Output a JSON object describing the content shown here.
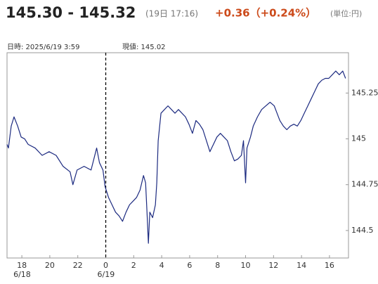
{
  "header": {
    "price": "145.30 - 145.32",
    "time": "(19日 17:16)",
    "change": "+0.36（+0.24%）",
    "unit": "(単位:円)"
  },
  "info": {
    "datetime": "日時: 2025/6/19  3:59",
    "current": "現値: 145.02"
  },
  "chart_data": {
    "type": "line",
    "x": [
      16.94,
      17.04,
      17.24,
      17.44,
      17.7,
      17.95,
      18.2,
      18.45,
      18.95,
      19.45,
      19.95,
      20.45,
      20.95,
      21.45,
      21.65,
      21.95,
      22.45,
      22.95,
      23.35,
      23.55,
      23.8,
      23.95,
      24.2,
      24.45,
      24.7,
      24.95,
      25.2,
      25.45,
      25.7,
      25.95,
      26.2,
      26.45,
      26.7,
      26.85,
      26.95,
      27.05,
      27.15,
      27.35,
      27.55,
      27.65,
      27.75,
      27.95,
      28.2,
      28.45,
      28.7,
      28.95,
      29.2,
      29.45,
      29.7,
      29.95,
      30.2,
      30.45,
      30.7,
      30.95,
      31.2,
      31.45,
      31.7,
      31.95,
      32.2,
      32.45,
      32.7,
      32.95,
      33.2,
      33.45,
      33.7,
      33.85,
      34.0,
      34.1,
      34.35,
      34.55,
      34.85,
      35.15,
      35.45,
      35.75,
      36.05,
      36.25,
      36.45,
      36.7,
      36.95,
      37.2,
      37.45,
      37.7,
      37.95,
      38.2,
      38.45,
      38.7,
      38.95,
      39.2,
      39.45,
      39.7,
      39.95,
      40.2,
      40.45,
      40.7,
      40.95,
      41.15
    ],
    "series": [
      {
        "color": "#1c2a80",
        "values": [
          144.97,
          144.95,
          145.07,
          145.12,
          145.07,
          145.01,
          145.0,
          144.97,
          144.95,
          144.91,
          144.93,
          144.91,
          144.85,
          144.82,
          144.75,
          144.83,
          144.85,
          144.83,
          144.95,
          144.87,
          144.83,
          144.74,
          144.68,
          144.64,
          144.6,
          144.58,
          144.55,
          144.6,
          144.64,
          144.66,
          144.68,
          144.72,
          144.8,
          144.76,
          144.6,
          144.43,
          144.6,
          144.57,
          144.64,
          144.76,
          144.99,
          145.14,
          145.16,
          145.18,
          145.16,
          145.14,
          145.16,
          145.14,
          145.12,
          145.08,
          145.03,
          145.1,
          145.08,
          145.05,
          144.99,
          144.93,
          144.97,
          145.01,
          145.03,
          145.01,
          144.99,
          144.93,
          144.88,
          144.89,
          144.91,
          144.99,
          144.76,
          144.95,
          145.01,
          145.07,
          145.12,
          145.16,
          145.18,
          145.2,
          145.18,
          145.14,
          145.1,
          145.07,
          145.05,
          145.07,
          145.08,
          145.07,
          145.1,
          145.14,
          145.18,
          145.22,
          145.26,
          145.3,
          145.32,
          145.33,
          145.33,
          145.35,
          145.37,
          145.35,
          145.37,
          145.33
        ]
      }
    ],
    "xlim": [
      16.94,
      41.36
    ],
    "ylim": [
      144.35,
      145.47
    ],
    "xticks": [
      18,
      20,
      22,
      {
        "value": 24,
        "label": "0"
      },
      {
        "value": 26,
        "label": "2"
      },
      {
        "value": 28,
        "label": "4"
      },
      {
        "value": 30,
        "label": "6"
      },
      {
        "value": 32,
        "label": "8"
      },
      {
        "value": 34,
        "label": "10"
      },
      {
        "value": 36,
        "label": "12"
      },
      {
        "value": 38,
        "label": "14"
      },
      {
        "value": 40,
        "label": "16"
      }
    ],
    "yticks": [
      144.5,
      144.75,
      145,
      145.25
    ],
    "annotations": [
      {
        "x": 18,
        "text": "6/18"
      },
      {
        "x": 24,
        "text": "6/19"
      }
    ],
    "day_divider": 24
  }
}
